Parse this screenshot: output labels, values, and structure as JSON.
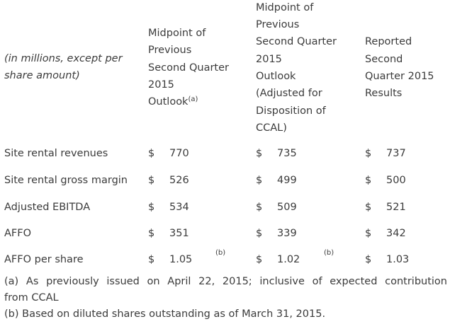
{
  "header": {
    "row_label": [
      "(in millions, except per",
      "share amount)"
    ],
    "col1": [
      "Midpoint of",
      "Previous",
      "Second Quarter",
      "2015"
    ],
    "col1_last": "Outlook",
    "col1_note": "(a)",
    "col2": [
      "Midpoint of",
      "Previous",
      "Second Quarter",
      "2015",
      "Outlook",
      "(Adjusted for",
      "Disposition of",
      "CCAL)"
    ],
    "col3": [
      "Reported",
      "Second",
      "Quarter 2015",
      "Results"
    ]
  },
  "currency": "$",
  "rows": [
    {
      "label": "Site rental revenues",
      "v1": "770",
      "v2": "735",
      "v3": "737"
    },
    {
      "label": "Site rental gross margin",
      "v1": "526",
      "v2": "499",
      "v3": "500"
    },
    {
      "label": "Adjusted EBITDA",
      "v1": "534",
      "v2": "509",
      "v3": "521"
    },
    {
      "label": "AFFO",
      "v1": "351",
      "v2": "339",
      "v3": "342"
    },
    {
      "label": "AFFO per share",
      "v1": "1.05",
      "v2": "1.02",
      "v3": "1.03",
      "note1": "(b)",
      "note2": "(b)"
    }
  ],
  "footnotes": {
    "a_line1": "(a) As previously issued on April 22, 2015; inclusive of expected contribution",
    "a_line2": "from CCAL",
    "b": "(b) Based on diluted shares outstanding as of March 31, 2015."
  }
}
